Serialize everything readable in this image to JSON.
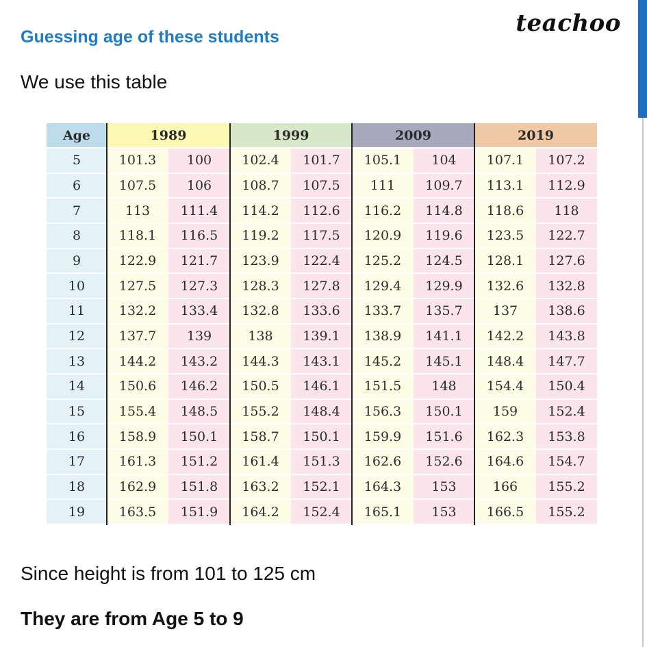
{
  "header": {
    "title": "Guessing age of these students",
    "logo": "teachoo"
  },
  "intro": "We use this table",
  "table": {
    "header": [
      "Age",
      "1989",
      "1999",
      "2009",
      "2019"
    ],
    "rows": [
      [
        "5",
        "101.3",
        "100",
        "102.4",
        "101.7",
        "105.1",
        "104",
        "107.1",
        "107.2"
      ],
      [
        "6",
        "107.5",
        "106",
        "108.7",
        "107.5",
        "111",
        "109.7",
        "113.1",
        "112.9"
      ],
      [
        "7",
        "113",
        "111.4",
        "114.2",
        "112.6",
        "116.2",
        "114.8",
        "118.6",
        "118"
      ],
      [
        "8",
        "118.1",
        "116.5",
        "119.2",
        "117.5",
        "120.9",
        "119.6",
        "123.5",
        "122.7"
      ],
      [
        "9",
        "122.9",
        "121.7",
        "123.9",
        "122.4",
        "125.2",
        "124.5",
        "128.1",
        "127.6"
      ],
      [
        "10",
        "127.5",
        "127.3",
        "128.3",
        "127.8",
        "129.4",
        "129.9",
        "132.6",
        "132.8"
      ],
      [
        "11",
        "132.2",
        "133.4",
        "132.8",
        "133.6",
        "133.7",
        "135.7",
        "137",
        "138.6"
      ],
      [
        "12",
        "137.7",
        "139",
        "138",
        "139.1",
        "138.9",
        "141.1",
        "142.2",
        "143.8"
      ],
      [
        "13",
        "144.2",
        "143.2",
        "144.3",
        "143.1",
        "145.2",
        "145.1",
        "148.4",
        "147.7"
      ],
      [
        "14",
        "150.6",
        "146.2",
        "150.5",
        "146.1",
        "151.5",
        "148",
        "154.4",
        "150.4"
      ],
      [
        "15",
        "155.4",
        "148.5",
        "155.2",
        "148.4",
        "156.3",
        "150.1",
        "159",
        "152.4"
      ],
      [
        "16",
        "158.9",
        "150.1",
        "158.7",
        "150.1",
        "159.9",
        "151.6",
        "162.3",
        "153.8"
      ],
      [
        "17",
        "161.3",
        "151.2",
        "161.4",
        "151.3",
        "162.6",
        "152.6",
        "164.6",
        "154.7"
      ],
      [
        "18",
        "162.9",
        "151.8",
        "163.2",
        "152.1",
        "164.3",
        "153",
        "166",
        "155.2"
      ],
      [
        "19",
        "163.5",
        "151.9",
        "164.2",
        "152.4",
        "165.1",
        "153",
        "166.5",
        "155.2"
      ]
    ]
  },
  "conclusion": [
    "Since height is from 101 to 125 cm",
    "They are from Age 5 to 9"
  ]
}
